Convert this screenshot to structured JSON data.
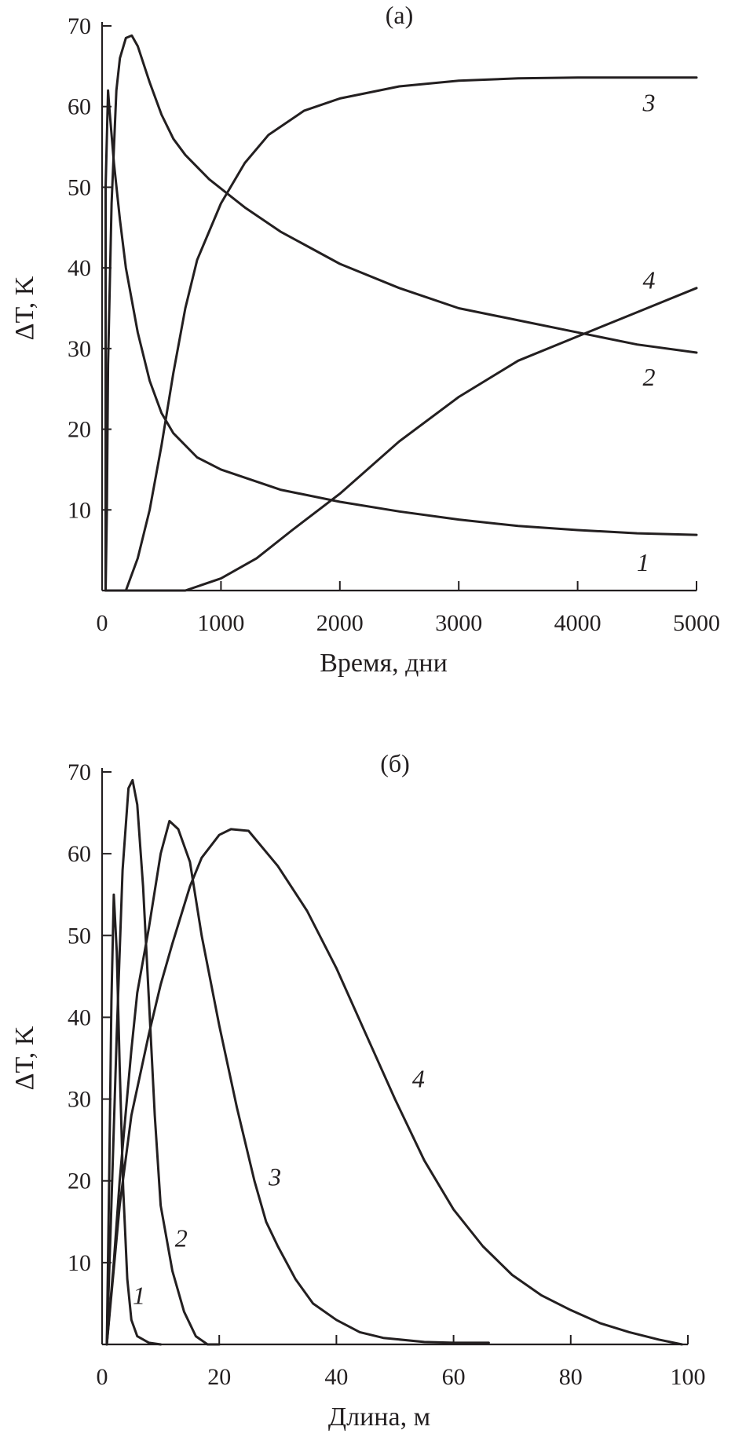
{
  "chart_data": [
    {
      "type": "line",
      "panel_title": "(а)",
      "xlabel": "Время, дни",
      "ylabel": "ΔT, K",
      "xlim": [
        0,
        5000
      ],
      "ylim": [
        0,
        70
      ],
      "xticks": [
        0,
        1000,
        2000,
        3000,
        4000,
        5000
      ],
      "yticks": [
        10,
        20,
        30,
        40,
        50,
        60,
        70
      ],
      "grid": false,
      "series": [
        {
          "label": "1",
          "label_at": [
            4550,
            3.5
          ],
          "points": [
            [
              30,
              0
            ],
            [
              30,
              50
            ],
            [
              50,
              62
            ],
            [
              60,
              60
            ],
            [
              100,
              53
            ],
            [
              150,
              46
            ],
            [
              200,
              40
            ],
            [
              300,
              32
            ],
            [
              400,
              26
            ],
            [
              500,
              22
            ],
            [
              600,
              19.5
            ],
            [
              800,
              16.5
            ],
            [
              1000,
              15
            ],
            [
              1500,
              12.5
            ],
            [
              2000,
              11
            ],
            [
              2500,
              9.8
            ],
            [
              3000,
              8.8
            ],
            [
              3500,
              8
            ],
            [
              4000,
              7.5
            ],
            [
              4500,
              7.1
            ],
            [
              5000,
              6.9
            ]
          ]
        },
        {
          "label": "2",
          "label_at": [
            4600,
            26.5
          ],
          "points": [
            [
              30,
              0
            ],
            [
              40,
              10
            ],
            [
              50,
              28
            ],
            [
              80,
              48
            ],
            [
              120,
              62
            ],
            [
              150,
              66
            ],
            [
              200,
              68.5
            ],
            [
              250,
              68.8
            ],
            [
              300,
              67.5
            ],
            [
              400,
              63
            ],
            [
              500,
              59
            ],
            [
              600,
              56
            ],
            [
              700,
              54
            ],
            [
              900,
              51
            ],
            [
              1200,
              47.5
            ],
            [
              1500,
              44.5
            ],
            [
              2000,
              40.5
            ],
            [
              2500,
              37.5
            ],
            [
              3000,
              35
            ],
            [
              3500,
              33.5
            ],
            [
              4000,
              32
            ],
            [
              4500,
              30.5
            ],
            [
              5000,
              29.5
            ]
          ]
        },
        {
          "label": "3",
          "label_at": [
            4600,
            60.5
          ],
          "points": [
            [
              30,
              0
            ],
            [
              200,
              0
            ],
            [
              300,
              4
            ],
            [
              400,
              10
            ],
            [
              500,
              18
            ],
            [
              600,
              27
            ],
            [
              700,
              35
            ],
            [
              800,
              41
            ],
            [
              1000,
              48
            ],
            [
              1200,
              53
            ],
            [
              1400,
              56.5
            ],
            [
              1700,
              59.5
            ],
            [
              2000,
              61
            ],
            [
              2500,
              62.5
            ],
            [
              3000,
              63.2
            ],
            [
              3500,
              63.5
            ],
            [
              4000,
              63.6
            ],
            [
              5000,
              63.6
            ]
          ]
        },
        {
          "label": "4",
          "label_at": [
            4600,
            38.5
          ],
          "points": [
            [
              30,
              0
            ],
            [
              700,
              0
            ],
            [
              1000,
              1.5
            ],
            [
              1300,
              4
            ],
            [
              1600,
              7.5
            ],
            [
              2000,
              12
            ],
            [
              2500,
              18.5
            ],
            [
              3000,
              24
            ],
            [
              3500,
              28.5
            ],
            [
              4000,
              31.5
            ],
            [
              4500,
              34.5
            ],
            [
              5000,
              37.5
            ]
          ]
        }
      ]
    },
    {
      "type": "line",
      "panel_title": "(б)",
      "xlabel": "Длина, м",
      "ylabel": "ΔT, K",
      "xlim": [
        0,
        100
      ],
      "ylim": [
        0,
        70
      ],
      "xticks": [
        0,
        20,
        40,
        60,
        80,
        100
      ],
      "yticks": [
        10,
        20,
        30,
        40,
        50,
        60,
        70
      ],
      "grid": false,
      "series": [
        {
          "label": "1",
          "label_at": [
            6.3,
            6
          ],
          "points": [
            [
              0.8,
              0
            ],
            [
              1.2,
              20
            ],
            [
              1.6,
              42
            ],
            [
              2.0,
              55
            ],
            [
              2.5,
              48
            ],
            [
              3.0,
              34
            ],
            [
              3.6,
              19
            ],
            [
              4.3,
              8
            ],
            [
              5.0,
              3
            ],
            [
              6.0,
              1
            ],
            [
              8.0,
              0.2
            ],
            [
              10,
              0
            ]
          ]
        },
        {
          "label": "2",
          "label_at": [
            13.5,
            13
          ],
          "points": [
            [
              0.8,
              0
            ],
            [
              1.5,
              15
            ],
            [
              2.5,
              38
            ],
            [
              3.5,
              58
            ],
            [
              4.5,
              68
            ],
            [
              5.2,
              69
            ],
            [
              6,
              66
            ],
            [
              7,
              56
            ],
            [
              8,
              42
            ],
            [
              9,
              28
            ],
            [
              10,
              17
            ],
            [
              12,
              9
            ],
            [
              14,
              4
            ],
            [
              16,
              1
            ],
            [
              18,
              0
            ],
            [
              20,
              0
            ]
          ]
        },
        {
          "label": "3",
          "label_at": [
            29.5,
            20.5
          ],
          "points": [
            [
              0.8,
              0
            ],
            [
              2,
              10
            ],
            [
              3,
              20
            ],
            [
              4,
              28
            ],
            [
              5,
              36
            ],
            [
              6,
              43
            ],
            [
              8,
              51
            ],
            [
              10,
              60
            ],
            [
              11.5,
              64
            ],
            [
              13,
              63
            ],
            [
              15,
              59
            ],
            [
              17,
              50
            ],
            [
              20,
              39
            ],
            [
              23,
              29
            ],
            [
              26,
              20
            ],
            [
              28,
              15
            ],
            [
              30,
              12
            ],
            [
              33,
              8
            ],
            [
              36,
              5
            ],
            [
              40,
              3
            ],
            [
              44,
              1.5
            ],
            [
              48,
              0.8
            ],
            [
              55,
              0.3
            ],
            [
              60,
              0.2
            ],
            [
              66,
              0.2
            ]
          ]
        },
        {
          "label": "4",
          "label_at": [
            54,
            32.5
          ],
          "points": [
            [
              0.8,
              0
            ],
            [
              3,
              17
            ],
            [
              5,
              28
            ],
            [
              8,
              38
            ],
            [
              10,
              44
            ],
            [
              12,
              49
            ],
            [
              15,
              56
            ],
            [
              17,
              59.5
            ],
            [
              20,
              62.3
            ],
            [
              22,
              63
            ],
            [
              25,
              62.8
            ],
            [
              30,
              58.5
            ],
            [
              35,
              53
            ],
            [
              40,
              46
            ],
            [
              45,
              38
            ],
            [
              50,
              30
            ],
            [
              55,
              22.5
            ],
            [
              60,
              16.5
            ],
            [
              65,
              12
            ],
            [
              70,
              8.5
            ],
            [
              75,
              6
            ],
            [
              80,
              4.2
            ],
            [
              85,
              2.6
            ],
            [
              90,
              1.5
            ],
            [
              95,
              0.6
            ],
            [
              99,
              0
            ]
          ]
        }
      ]
    }
  ]
}
